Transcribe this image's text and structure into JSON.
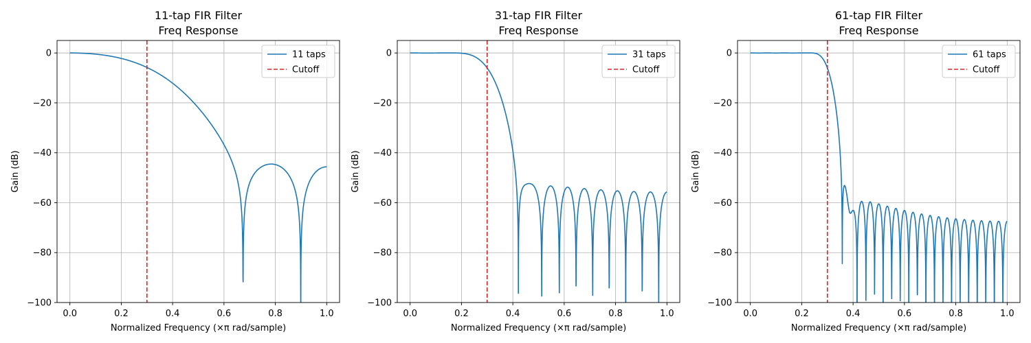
{
  "colors": {
    "response": "#1f77b4",
    "cutoff": "#d62728",
    "grid": "#b0b0b0"
  },
  "chart_data": [
    {
      "type": "line",
      "title": [
        "11-tap FIR Filter",
        "Freq Response"
      ],
      "xlabel": "Normalized Frequency (×π rad/sample)",
      "ylabel": "Gain (dB)",
      "xlim": [
        -0.05,
        1.05
      ],
      "ylim": [
        -100,
        5
      ],
      "xticks": [
        0.0,
        0.2,
        0.4,
        0.6,
        0.8,
        1.0
      ],
      "xtick_labels": [
        "0.0",
        "0.2",
        "0.4",
        "0.6",
        "0.8",
        "1.0"
      ],
      "yticks": [
        0,
        -20,
        -40,
        -60,
        -80,
        -100
      ],
      "ytick_labels": [
        "0",
        "−20",
        "−40",
        "−60",
        "−80",
        "−100"
      ],
      "grid": true,
      "legend": "top-right",
      "numtaps": 11,
      "cutoff": 0.3,
      "series": [
        {
          "name": "11 taps",
          "style": "solid"
        },
        {
          "name": "Cutoff",
          "style": "dashed"
        }
      ]
    },
    {
      "type": "line",
      "title": [
        "31-tap FIR Filter",
        "Freq Response"
      ],
      "xlabel": "Normalized Frequency (×π rad/sample)",
      "ylabel": "Gain (dB)",
      "xlim": [
        -0.05,
        1.05
      ],
      "ylim": [
        -100,
        5
      ],
      "xticks": [
        0.0,
        0.2,
        0.4,
        0.6,
        0.8,
        1.0
      ],
      "xtick_labels": [
        "0.0",
        "0.2",
        "0.4",
        "0.6",
        "0.8",
        "1.0"
      ],
      "yticks": [
        0,
        -20,
        -40,
        -60,
        -80,
        -100
      ],
      "ytick_labels": [
        "0",
        "−20",
        "−40",
        "−60",
        "−80",
        "−100"
      ],
      "grid": true,
      "legend": "top-right",
      "numtaps": 31,
      "cutoff": 0.3,
      "series": [
        {
          "name": "31 taps",
          "style": "solid"
        },
        {
          "name": "Cutoff",
          "style": "dashed"
        }
      ]
    },
    {
      "type": "line",
      "title": [
        "61-tap FIR Filter",
        "Freq Response"
      ],
      "xlabel": "Normalized Frequency (×π rad/sample)",
      "ylabel": "Gain (dB)",
      "xlim": [
        -0.05,
        1.05
      ],
      "ylim": [
        -100,
        5
      ],
      "xticks": [
        0.0,
        0.2,
        0.4,
        0.6,
        0.8,
        1.0
      ],
      "xtick_labels": [
        "0.0",
        "0.2",
        "0.4",
        "0.6",
        "0.8",
        "1.0"
      ],
      "yticks": [
        0,
        -20,
        -40,
        -60,
        -80,
        -100
      ],
      "ytick_labels": [
        "0",
        "−20",
        "−40",
        "−60",
        "−80",
        "−100"
      ],
      "grid": true,
      "legend": "top-right",
      "numtaps": 61,
      "cutoff": 0.3,
      "series": [
        {
          "name": "61 taps",
          "style": "solid"
        },
        {
          "name": "Cutoff",
          "style": "dashed"
        }
      ]
    }
  ]
}
